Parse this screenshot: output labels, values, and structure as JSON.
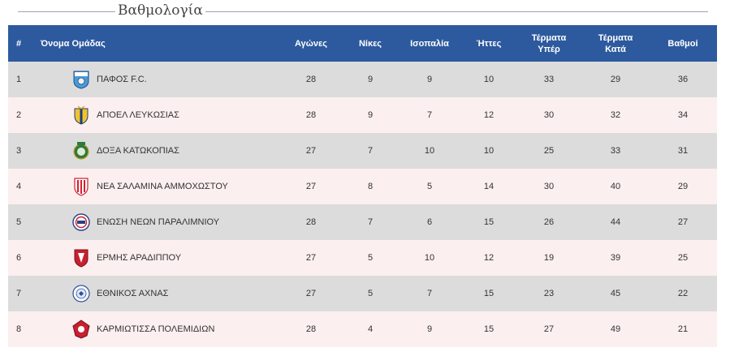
{
  "page": {
    "title": "Βαθμολογία"
  },
  "table": {
    "headers": {
      "pos": "#",
      "team": "Όνομα Ομάδας",
      "played": "Αγώνες",
      "wins": "Νίκες",
      "draws": "Ισοπαλία",
      "losses": "Ήττες",
      "goals_for_1": "Τέρματα",
      "goals_for_2": "Υπέρ",
      "goals_against_1": "Τέρματα",
      "goals_against_2": "Κατά",
      "points": "Βαθμοί"
    },
    "rows": [
      {
        "pos": "1",
        "team": "ΠΑΦΟΣ F.C.",
        "logo": "pafos-logo-icon",
        "played": "28",
        "wins": "9",
        "draws": "9",
        "losses": "10",
        "gf": "33",
        "ga": "29",
        "pts": "36"
      },
      {
        "pos": "2",
        "team": "ΑΠΟΕΛ ΛΕΥΚΩΣΙΑΣ",
        "logo": "apoel-logo-icon",
        "played": "28",
        "wins": "9",
        "draws": "7",
        "losses": "12",
        "gf": "30",
        "ga": "32",
        "pts": "34"
      },
      {
        "pos": "3",
        "team": "ΔΟΞΑ ΚΑΤΩΚΟΠΙΑΣ",
        "logo": "doxa-logo-icon",
        "played": "27",
        "wins": "7",
        "draws": "10",
        "losses": "10",
        "gf": "25",
        "ga": "33",
        "pts": "31"
      },
      {
        "pos": "4",
        "team": "ΝΕΑ ΣΑΛΑΜΙΝΑ ΑΜΜΟΧΩΣΤΟΥ",
        "logo": "nea-salamina-logo-icon",
        "played": "27",
        "wins": "8",
        "draws": "5",
        "losses": "14",
        "gf": "30",
        "ga": "40",
        "pts": "29"
      },
      {
        "pos": "5",
        "team": "ΕΝΩΣΗ ΝΕΩΝ ΠΑΡΑΛΙΜΝΙΟΥ",
        "logo": "enp-logo-icon",
        "played": "28",
        "wins": "7",
        "draws": "6",
        "losses": "15",
        "gf": "26",
        "ga": "44",
        "pts": "27"
      },
      {
        "pos": "6",
        "team": "ΕΡΜΗΣ ΑΡΑΔΙΠΠΟΥ",
        "logo": "ermis-logo-icon",
        "played": "27",
        "wins": "5",
        "draws": "10",
        "losses": "12",
        "gf": "19",
        "ga": "39",
        "pts": "25"
      },
      {
        "pos": "7",
        "team": "ΕΘΝΙΚΟΣ ΑΧΝΑΣ",
        "logo": "ethnikos-logo-icon",
        "played": "27",
        "wins": "5",
        "draws": "7",
        "losses": "15",
        "gf": "23",
        "ga": "45",
        "pts": "22"
      },
      {
        "pos": "8",
        "team": "ΚΑΡΜΙΩΤΙΣΣΑ ΠΟΛΕΜΙΔΙΩΝ",
        "logo": "karmiotissa-logo-icon",
        "played": "28",
        "wins": "4",
        "draws": "9",
        "losses": "15",
        "gf": "27",
        "ga": "49",
        "pts": "21"
      }
    ]
  },
  "colors": {
    "header_bg": "#2d5a9e",
    "row_odd": "#dcdcdc",
    "row_even": "#fcefef"
  }
}
